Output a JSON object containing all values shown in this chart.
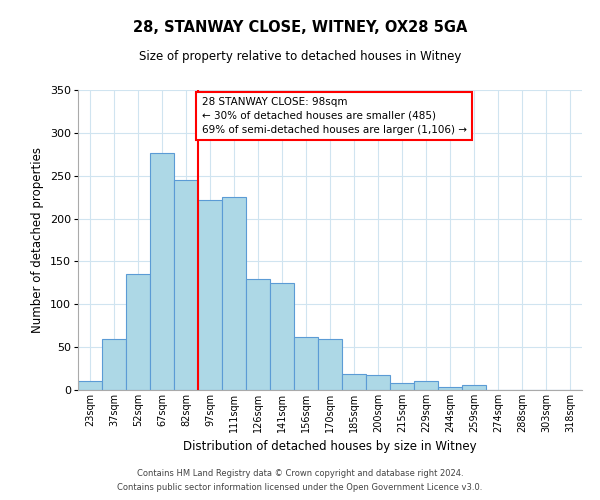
{
  "title": "28, STANWAY CLOSE, WITNEY, OX28 5GA",
  "subtitle": "Size of property relative to detached houses in Witney",
  "xlabel": "Distribution of detached houses by size in Witney",
  "ylabel": "Number of detached properties",
  "bar_labels": [
    "23sqm",
    "37sqm",
    "52sqm",
    "67sqm",
    "82sqm",
    "97sqm",
    "111sqm",
    "126sqm",
    "141sqm",
    "156sqm",
    "170sqm",
    "185sqm",
    "200sqm",
    "215sqm",
    "229sqm",
    "244sqm",
    "259sqm",
    "274sqm",
    "288sqm",
    "303sqm",
    "318sqm"
  ],
  "bar_values": [
    10,
    60,
    135,
    277,
    245,
    222,
    225,
    130,
    125,
    62,
    60,
    19,
    17,
    8,
    10,
    4,
    6,
    0,
    0,
    0,
    0
  ],
  "bar_color": "#add8e6",
  "bar_edge_color": "#5b9bd5",
  "grid_color": "#d0e4f0",
  "vline_x_idx": 4.5,
  "vline_color": "red",
  "annotation_text": "28 STANWAY CLOSE: 98sqm\n← 30% of detached houses are smaller (485)\n69% of semi-detached houses are larger (1,106) →",
  "annotation_box_color": "white",
  "annotation_box_edge": "red",
  "ylim": [
    0,
    350
  ],
  "yticks": [
    0,
    50,
    100,
    150,
    200,
    250,
    300,
    350
  ],
  "footer1": "Contains HM Land Registry data © Crown copyright and database right 2024.",
  "footer2": "Contains public sector information licensed under the Open Government Licence v3.0."
}
